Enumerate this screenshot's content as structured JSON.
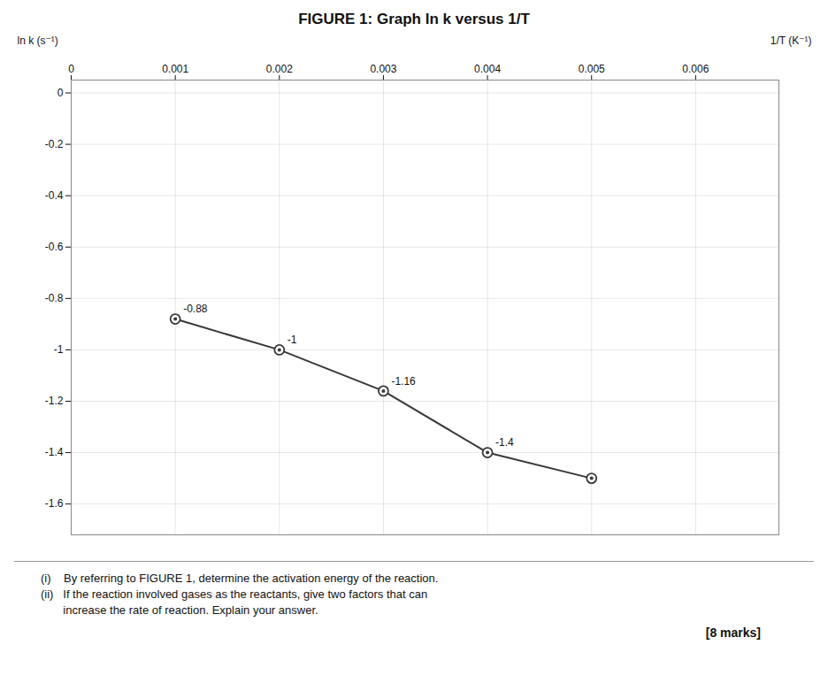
{
  "chart_data": {
    "type": "line",
    "title": "FIGURE 1: Graph ln k versus 1/T",
    "x_label": "1/T (K⁻¹)",
    "y_label": "ln k (s⁻¹)",
    "x": [
      0.001,
      0.002,
      0.003,
      0.004,
      0.005
    ],
    "values": [
      -0.88,
      -1.0,
      -1.16,
      -1.4,
      -1.5
    ],
    "color": "#383838",
    "marker": "o",
    "xlim": [
      0.0,
      0.0068
    ],
    "ylim": [
      -1.72,
      0.05
    ],
    "xticks": [
      0,
      0.001,
      0.002,
      0.003,
      0.004,
      0.005,
      0.006
    ],
    "yticks": [
      0,
      -0.2,
      -0.4,
      -0.6,
      -0.8,
      -1,
      -1.2,
      -1.4,
      -1.6
    ],
    "grid": true,
    "annotations": [
      {
        "x": 0.001,
        "y": -0.88,
        "text": "-0.88"
      },
      {
        "x": 0.002,
        "y": -1.0,
        "text": "-1"
      },
      {
        "x": 0.003,
        "y": -1.16,
        "text": "-1.16"
      },
      {
        "x": 0.004,
        "y": -1.4,
        "text": "-1.4"
      }
    ],
    "caption": [
      "(i)    By referring to FIGURE 1, determine the activation energy of the reaction.",
      "(ii)   If the reaction involved gases as the reactants, give two factors that can",
      "       increase the rate of reaction. Explain your answer."
    ],
    "footer": "[8 marks]"
  }
}
